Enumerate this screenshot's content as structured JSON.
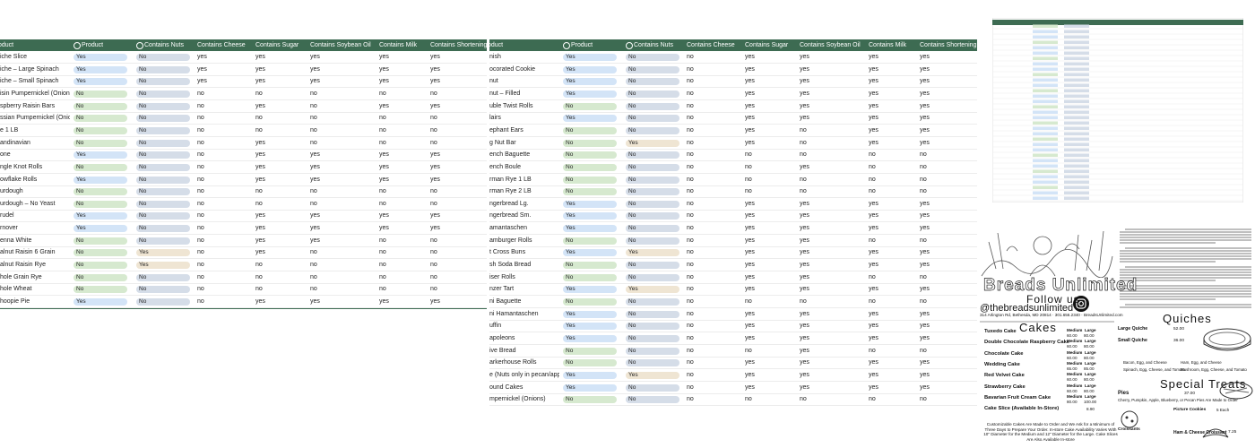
{
  "tables": [
    {
      "columns": [
        "oduct",
        "Product",
        "Contains Nuts",
        "Contains Cheese",
        "Contains Sugar",
        "Contains Soybean Oil",
        "Contains Milk",
        "Contains Shortening"
      ],
      "rows": [
        [
          "iche Slice",
          "Yes",
          "No",
          "yes",
          "yes",
          "yes",
          "yes",
          "yes"
        ],
        [
          "iche – Large Spinach",
          "Yes",
          "No",
          "yes",
          "yes",
          "yes",
          "yes",
          "yes"
        ],
        [
          "iche – Small Spinach",
          "Yes",
          "No",
          "yes",
          "yes",
          "yes",
          "yes",
          "yes"
        ],
        [
          "isin Pumpernickel (Onions)",
          "No",
          "No",
          "no",
          "no",
          "no",
          "no",
          "no"
        ],
        [
          "spberry Raisin Bars",
          "No",
          "No",
          "no",
          "yes",
          "no",
          "yes",
          "yes"
        ],
        [
          "ssian Pumpernickel (Onions",
          "No",
          "No",
          "no",
          "no",
          "no",
          "no",
          "no"
        ],
        [
          "e 1 LB",
          "No",
          "No",
          "no",
          "no",
          "no",
          "no",
          "no"
        ],
        [
          "andinavian",
          "No",
          "No",
          "no",
          "yes",
          "no",
          "no",
          "no"
        ],
        [
          "one",
          "Yes",
          "No",
          "no",
          "yes",
          "yes",
          "yes",
          "yes"
        ],
        [
          "ngle Knot Rolls",
          "No",
          "No",
          "no",
          "yes",
          "yes",
          "yes",
          "yes"
        ],
        [
          "owflake Rolls",
          "Yes",
          "No",
          "no",
          "yes",
          "yes",
          "yes",
          "yes"
        ],
        [
          "urdough",
          "No",
          "No",
          "no",
          "no",
          "no",
          "no",
          "no"
        ],
        [
          "urdough – No Yeast",
          "No",
          "No",
          "no",
          "no",
          "no",
          "no",
          "no"
        ],
        [
          "rudel",
          "Yes",
          "No",
          "no",
          "yes",
          "yes",
          "yes",
          "yes"
        ],
        [
          "rnover",
          "Yes",
          "No",
          "no",
          "yes",
          "yes",
          "yes",
          "yes"
        ],
        [
          "enna White",
          "No",
          "No",
          "no",
          "yes",
          "yes",
          "no",
          "no"
        ],
        [
          "alnut Raisin 6 Grain",
          "No",
          "Yes",
          "no",
          "yes",
          "no",
          "no",
          "no"
        ],
        [
          "alnut Raisin Rye",
          "No",
          "Yes",
          "no",
          "no",
          "no",
          "no",
          "no"
        ],
        [
          "hole Grain Rye",
          "No",
          "No",
          "no",
          "no",
          "no",
          "no",
          "no"
        ],
        [
          "hole Wheat",
          "No",
          "No",
          "no",
          "no",
          "no",
          "no",
          "no"
        ],
        [
          "hoopie Pie",
          "Yes",
          "No",
          "no",
          "yes",
          "yes",
          "yes",
          "yes"
        ]
      ]
    },
    {
      "columns": [
        "oduct",
        "Product",
        "Contains Nuts",
        "Contains Cheese",
        "Contains Sugar",
        "Contains Soybean Oil",
        "Contains Milk",
        "Contains Shortening"
      ],
      "rows": [
        [
          "nish",
          "Yes",
          "No",
          "no",
          "yes",
          "yes",
          "yes",
          "yes"
        ],
        [
          "ocorated Cookie",
          "Yes",
          "No",
          "no",
          "yes",
          "yes",
          "yes",
          "yes"
        ],
        [
          "nut",
          "Yes",
          "No",
          "no",
          "yes",
          "yes",
          "yes",
          "yes"
        ],
        [
          "nut – Filled",
          "Yes",
          "No",
          "no",
          "yes",
          "yes",
          "yes",
          "yes"
        ],
        [
          "uble Twist Rolls",
          "No",
          "No",
          "no",
          "yes",
          "yes",
          "yes",
          "yes"
        ],
        [
          "lairs",
          "Yes",
          "No",
          "no",
          "yes",
          "yes",
          "yes",
          "yes"
        ],
        [
          "ephant Ears",
          "No",
          "No",
          "no",
          "yes",
          "no",
          "yes",
          "yes"
        ],
        [
          "g Nut Bar",
          "No",
          "Yes",
          "no",
          "yes",
          "no",
          "yes",
          "yes"
        ],
        [
          "ench Baguette",
          "No",
          "No",
          "no",
          "no",
          "no",
          "no",
          "no"
        ],
        [
          "ench Boule",
          "No",
          "No",
          "no",
          "no",
          "yes",
          "no",
          "no"
        ],
        [
          "rman Rye 1 LB",
          "No",
          "No",
          "no",
          "no",
          "no",
          "no",
          "no"
        ],
        [
          "rman Rye 2 LB",
          "No",
          "No",
          "no",
          "no",
          "no",
          "no",
          "no"
        ],
        [
          "ngerbread Lg.",
          "Yes",
          "No",
          "no",
          "yes",
          "yes",
          "yes",
          "yes"
        ],
        [
          "ngerbread Sm.",
          "Yes",
          "No",
          "no",
          "yes",
          "yes",
          "yes",
          "yes"
        ],
        [
          "amantaschen",
          "Yes",
          "No",
          "no",
          "yes",
          "yes",
          "yes",
          "yes"
        ],
        [
          "amburger Rolls",
          "No",
          "No",
          "no",
          "yes",
          "yes",
          "no",
          "no"
        ],
        [
          "t Cross Buns",
          "Yes",
          "Yes",
          "no",
          "yes",
          "yes",
          "yes",
          "yes"
        ],
        [
          "sh Soda Bread",
          "No",
          "No",
          "no",
          "yes",
          "yes",
          "yes",
          "yes"
        ],
        [
          "iser Rolls",
          "No",
          "No",
          "no",
          "yes",
          "yes",
          "no",
          "no"
        ],
        [
          "nzer Tart",
          "Yes",
          "Yes",
          "no",
          "yes",
          "yes",
          "yes",
          "yes"
        ],
        [
          "ni Baguette",
          "No",
          "No",
          "no",
          "no",
          "no",
          "no",
          "no"
        ],
        [
          "ni Hamantaschen",
          "Yes",
          "No",
          "no",
          "yes",
          "yes",
          "yes",
          "yes"
        ],
        [
          "uffin",
          "Yes",
          "No",
          "no",
          "yes",
          "yes",
          "yes",
          "yes"
        ],
        [
          "apoleons",
          "Yes",
          "No",
          "no",
          "yes",
          "yes",
          "yes",
          "yes"
        ],
        [
          "ive Bread",
          "No",
          "No",
          "no",
          "no",
          "yes",
          "no",
          "no"
        ],
        [
          "arkerhouse Rolls",
          "No",
          "No",
          "no",
          "yes",
          "yes",
          "yes",
          "yes"
        ],
        [
          "e (Nuts only in pecan/apple)",
          "Yes",
          "Yes",
          "no",
          "yes",
          "yes",
          "yes",
          "yes"
        ],
        [
          "ound Cakes",
          "Yes",
          "No",
          "no",
          "yes",
          "yes",
          "yes",
          "yes"
        ],
        [
          "mpernickel (Onions)",
          "No",
          "No",
          "no",
          "no",
          "no",
          "no",
          "no"
        ]
      ]
    }
  ],
  "menu": {
    "brand": "Breads Unlimited",
    "follow": "Follow us:",
    "handle": "@thebreadsunlimited",
    "address": "314 Arlington Rd, Bethesda, MD 20814 · 301.656.2340 · BreadsUnlimited.com",
    "cakes": {
      "title": "Cakes",
      "sizes": [
        "Medium",
        "Large"
      ],
      "items": [
        {
          "name": "Tuxedo Cake",
          "prices": [
            "60.00",
            "80.00"
          ]
        },
        {
          "name": "Double Chocolate Raspberry Cake",
          "prices": [
            "60.00",
            "80.00"
          ]
        },
        {
          "name": "Chocolate Cake",
          "prices": [
            "60.00",
            "80.00"
          ]
        },
        {
          "name": "Wedding Cake",
          "prices": [
            "65.00",
            "85.00"
          ]
        },
        {
          "name": "Red Velvet Cake",
          "prices": [
            "60.00",
            "80.00"
          ]
        },
        {
          "name": "Strawberry Cake",
          "prices": [
            "60.00",
            "80.00"
          ]
        },
        {
          "name": "Bavarian Fruit Cream Cake",
          "prices": [
            "80.00",
            "100.00"
          ]
        },
        {
          "name": "Cake Slice (Available In-Store)",
          "prices": [
            "8.90"
          ]
        }
      ],
      "note": "Customizable Cakes Are Made to Order and We Ask for a Minimum of Three Days to Prepare Your Order. In-store Cake Availability Varies With 10\" Diameter for the Medium and 12\" Diameter for the Large. Cake Slices Are Also Available In-store"
    },
    "quiches": {
      "title": "Quiches",
      "items": [
        {
          "name": "Large Quiche",
          "price": "52.00"
        },
        {
          "name": "Small Quiche",
          "price": "36.00"
        }
      ],
      "options": [
        "Bacon, Egg, and Cheese",
        "Ham, Egg, and Cheese",
        "Spinach, Egg, Cheese, and Tomato",
        "Mushroom, Egg, Cheese, and Tomato"
      ]
    },
    "treats": {
      "title": "Special Treats",
      "pies": "Pies",
      "pies_price": "37.00",
      "pies_note": "Cherry, Pumpkin, Apple, Blueberry, or Pecan Pies Are Made to Order",
      "cookies": "Picture Cookies",
      "cookies_price": "5 Each",
      "croissants": "Croissants",
      "ham_croissant": "Ham & Cheese Croissant",
      "ham_croissant_price": "7.25"
    }
  }
}
